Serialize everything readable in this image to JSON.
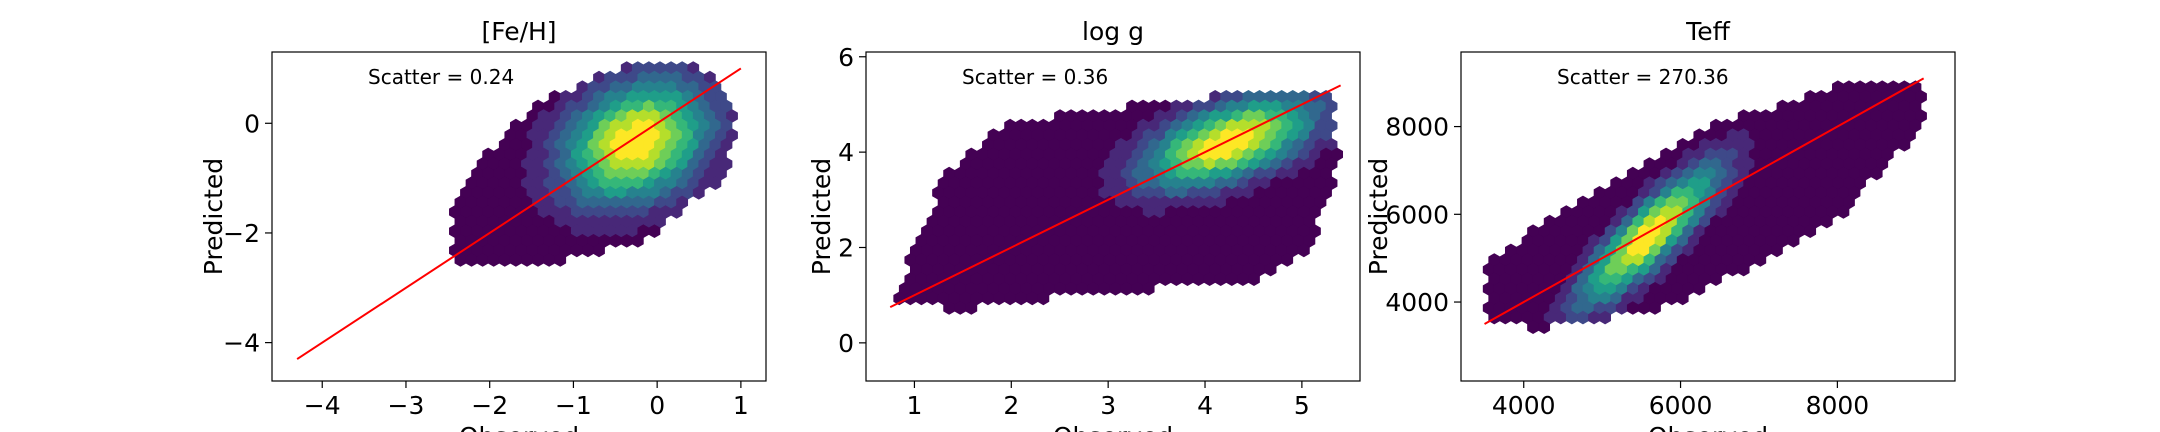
{
  "chart_data": [
    {
      "type": "hexbin-scatter",
      "title": "[Fe/H]",
      "xlabel": "Observed",
      "ylabel": "Predicted",
      "xlim": [
        -4.6,
        1.3
      ],
      "ylim": [
        -4.7,
        1.3
      ],
      "xticks": [
        -4,
        -3,
        -2,
        -1,
        0,
        1
      ],
      "yticks": [
        -4,
        -2,
        0
      ],
      "tick_labels_x": [
        "−4",
        "−3",
        "−2",
        "−1",
        "0",
        "1"
      ],
      "tick_labels_y": [
        "−4",
        "−2",
        "0"
      ],
      "annotation": "Scatter = 0.24",
      "fit_line": {
        "x": [
          -4.3,
          1.0
        ],
        "y": [
          -4.3,
          1.0
        ],
        "color": "#ff0000"
      },
      "density": {
        "center": [
          -0.25,
          -0.35
        ],
        "axes": [
          0.55,
          0.6
        ],
        "tilt": 0.5,
        "envelope": [
          [
            -2.4,
            -2.5
          ],
          [
            -1.3,
            -2.6
          ],
          [
            -0.1,
            -2.1
          ],
          [
            0.85,
            -0.9
          ],
          [
            0.95,
            0.2
          ],
          [
            0.55,
            1.0
          ],
          [
            -0.3,
            1.1
          ],
          [
            -1.5,
            0.3
          ],
          [
            -2.3,
            -1.0
          ],
          [
            -2.5,
            -2.0
          ]
        ]
      }
    },
    {
      "type": "hexbin-scatter",
      "title": "log g",
      "xlabel": "Observed",
      "ylabel": "Predicted",
      "xlim": [
        0.5,
        5.6
      ],
      "ylim": [
        -0.8,
        6.1
      ],
      "xticks": [
        1,
        2,
        3,
        4,
        5
      ],
      "yticks": [
        0,
        2,
        4,
        6
      ],
      "tick_labels_x": [
        "1",
        "2",
        "3",
        "4",
        "5"
      ],
      "tick_labels_y": [
        "0",
        "2",
        "4",
        "6"
      ],
      "annotation": "Scatter = 0.36",
      "fit_line": {
        "x": [
          0.75,
          5.4
        ],
        "y": [
          0.75,
          5.4
        ],
        "color": "#ff0000"
      },
      "density": {
        "center": [
          4.25,
          4.2
        ],
        "axes": [
          0.55,
          0.45
        ],
        "tilt": 0.35,
        "envelope": [
          [
            0.8,
            0.8
          ],
          [
            1.5,
            0.7
          ],
          [
            3.0,
            1.1
          ],
          [
            4.5,
            1.2
          ],
          [
            5.1,
            2.0
          ],
          [
            5.4,
            3.8
          ],
          [
            5.3,
            5.2
          ],
          [
            4.6,
            5.3
          ],
          [
            3.0,
            4.9
          ],
          [
            1.9,
            4.6
          ],
          [
            1.3,
            3.5
          ],
          [
            0.9,
            1.5
          ]
        ]
      }
    },
    {
      "type": "hexbin-scatter",
      "title": "Teff",
      "xlabel": "Observed",
      "ylabel": "Predicted",
      "xlim": [
        3200,
        9500
      ],
      "ylim": [
        2200,
        9700
      ],
      "xticks": [
        4000,
        6000,
        8000
      ],
      "yticks": [
        4000,
        6000,
        8000
      ],
      "tick_labels_x": [
        "4000",
        "6000",
        "8000"
      ],
      "tick_labels_y": [
        "4000",
        "6000",
        "8000"
      ],
      "annotation": "Scatter = 270.36",
      "fit_line": {
        "x": [
          3500,
          9100
        ],
        "y": [
          3500,
          9100
        ],
        "color": "#ff0000"
      },
      "density": {
        "center": [
          5600,
          5500
        ],
        "axes": [
          700,
          350
        ],
        "tilt": 0.78,
        "envelope": [
          [
            3500,
            3500
          ],
          [
            4300,
            3400
          ],
          [
            6000,
            3950
          ],
          [
            8000,
            5900
          ],
          [
            9100,
            8000
          ],
          [
            9100,
            9100
          ],
          [
            8200,
            9000
          ],
          [
            6500,
            8100
          ],
          [
            4500,
            6100
          ],
          [
            3500,
            4900
          ]
        ]
      }
    }
  ]
}
